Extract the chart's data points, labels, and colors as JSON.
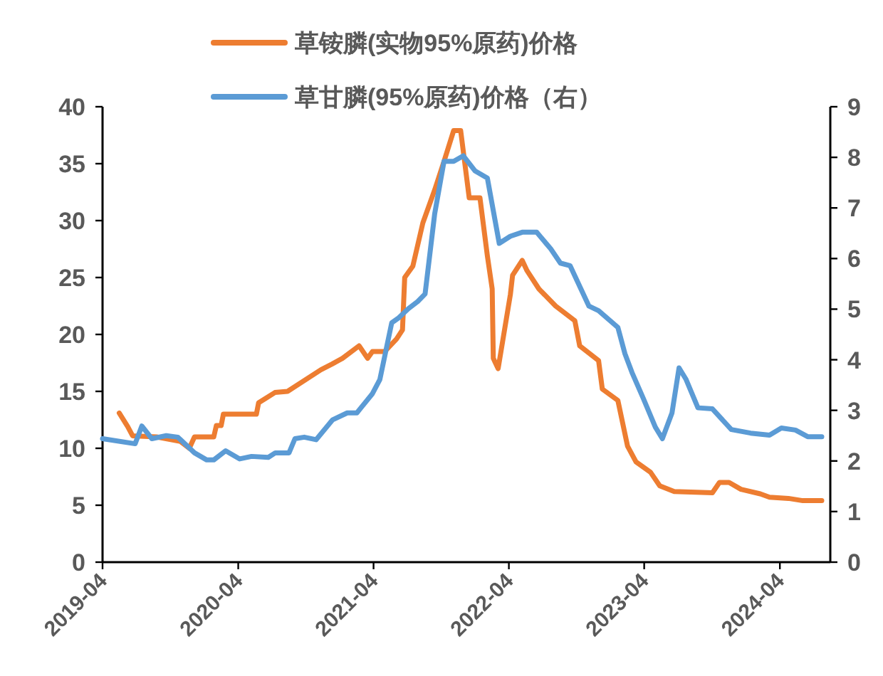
{
  "chart_data": {
    "type": "line",
    "legend": "top",
    "grid": false,
    "marker": "none",
    "line_style": "solid",
    "xlim": [
      "2019-04",
      "2024-08-15"
    ],
    "xticks": [
      "2019-04",
      "2020-04",
      "2021-04",
      "2022-04",
      "2023-04",
      "2024-04"
    ],
    "ylim": [
      0,
      40
    ],
    "yticks": [
      0,
      5,
      10,
      15,
      20,
      25,
      30,
      35,
      40
    ],
    "y2lim": [
      0,
      9
    ],
    "y2ticks": [
      0,
      1,
      2,
      3,
      4,
      5,
      6,
      7,
      8,
      9
    ],
    "series": [
      {
        "name": "草铵膦(实物95%原药)价格",
        "color": "#ed7d31",
        "x": [
          "2019-05-16",
          "2019-06-08",
          "2019-06-21",
          "2019-08-25",
          "2019-10-28",
          "2019-11-21",
          "2019-12-05",
          "2020-01-26",
          "2020-02-02",
          "2020-02-15",
          "2020-02-21",
          "2020-05-20",
          "2020-05-26",
          "2020-06-15",
          "2020-07-09",
          "2020-08-12",
          "2020-11-10",
          "2020-12-10",
          "2021-01-07",
          "2021-02-21",
          "2021-03-16",
          "2021-03-29",
          "2021-05-01",
          "2021-06-02",
          "2021-06-18",
          "2021-06-24",
          "2021-07-16",
          "2021-08-12",
          "2021-09-13",
          "2021-10-08",
          "2021-11-03",
          "2021-11-22",
          "2021-12-15",
          "2022-01-13",
          "2022-02-02",
          "2022-02-15",
          "2022-02-18",
          "2022-03-03",
          "2022-04-05",
          "2022-04-11",
          "2022-05-07",
          "2022-05-20",
          "2022-06-21",
          "2022-08-05",
          "2022-09-26",
          "2022-10-09",
          "2022-11-29",
          "2022-12-09",
          "2023-01-20",
          "2023-02-15",
          "2023-03-10",
          "2023-04-18",
          "2023-05-13",
          "2023-06-21",
          "2023-10-02",
          "2023-10-21",
          "2023-11-16",
          "2023-12-18",
          "2024-02-08",
          "2024-03-04",
          "2024-04-24",
          "2024-06-02",
          "2024-07-23"
        ],
        "values": [
          13.1,
          11.9,
          11.1,
          11.0,
          10.6,
          10.0,
          11.0,
          11.0,
          12.0,
          12.0,
          13.0,
          13.0,
          14.0,
          14.4,
          14.9,
          15.0,
          16.9,
          17.4,
          17.9,
          19.0,
          17.9,
          18.5,
          18.5,
          19.6,
          20.4,
          25.0,
          26.0,
          29.8,
          32.7,
          35.2,
          37.9,
          37.9,
          32.0,
          32.0,
          26.9,
          24.0,
          17.9,
          17.0,
          23.5,
          25.2,
          26.5,
          25.6,
          24.0,
          22.5,
          21.2,
          19.0,
          17.7,
          15.2,
          14.2,
          10.2,
          8.8,
          7.9,
          6.7,
          6.2,
          6.1,
          7.0,
          7.0,
          6.4,
          6.0,
          5.7,
          5.6,
          5.4,
          5.4
        ]
      },
      {
        "name": "草甘膦(95%原药)价格（右）",
        "color": "#5b9bd5",
        "axis": "y2",
        "x": [
          "2019-04-01",
          "2019-06-28",
          "2019-07-16",
          "2019-08-12",
          "2019-09-20",
          "2019-10-21",
          "2019-12-05",
          "2020-01-07",
          "2020-01-26",
          "2020-02-27",
          "2020-04-05",
          "2020-05-07",
          "2020-06-21",
          "2020-07-10",
          "2020-08-16",
          "2020-09-01",
          "2020-09-26",
          "2020-10-28",
          "2020-12-11",
          "2021-01-20",
          "2021-02-15",
          "2021-03-29",
          "2021-04-18",
          "2021-05-20",
          "2021-06-08",
          "2021-07-04",
          "2021-07-29",
          "2021-08-18",
          "2021-09-13",
          "2021-10-08",
          "2021-11-03",
          "2021-11-29",
          "2021-12-31",
          "2022-02-02",
          "2022-03-06",
          "2022-04-05",
          "2022-05-07",
          "2022-06-15",
          "2022-07-23",
          "2022-08-18",
          "2022-09-13",
          "2022-11-03",
          "2022-11-29",
          "2023-01-20",
          "2023-02-08",
          "2023-02-27",
          "2023-03-30",
          "2023-05-01",
          "2023-05-20",
          "2023-06-15",
          "2023-07-04",
          "2023-07-23",
          "2023-08-24",
          "2023-10-02",
          "2023-11-22",
          "2024-01-13",
          "2024-03-04",
          "2024-04-05",
          "2024-05-13",
          "2024-06-15",
          "2024-07-23"
        ],
        "values": [
          2.44,
          2.34,
          2.69,
          2.44,
          2.5,
          2.47,
          2.16,
          2.02,
          2.02,
          2.2,
          2.04,
          2.09,
          2.07,
          2.16,
          2.16,
          2.44,
          2.47,
          2.42,
          2.81,
          2.95,
          2.95,
          3.33,
          3.61,
          4.73,
          4.83,
          5.01,
          5.15,
          5.3,
          6.89,
          7.92,
          7.92,
          8.03,
          7.73,
          7.59,
          6.3,
          6.44,
          6.52,
          6.52,
          6.19,
          5.91,
          5.86,
          5.06,
          4.97,
          4.64,
          4.12,
          3.75,
          3.23,
          2.67,
          2.44,
          2.95,
          3.84,
          3.61,
          3.05,
          3.03,
          2.62,
          2.55,
          2.51,
          2.65,
          2.61,
          2.48,
          2.48
        ]
      }
    ]
  }
}
